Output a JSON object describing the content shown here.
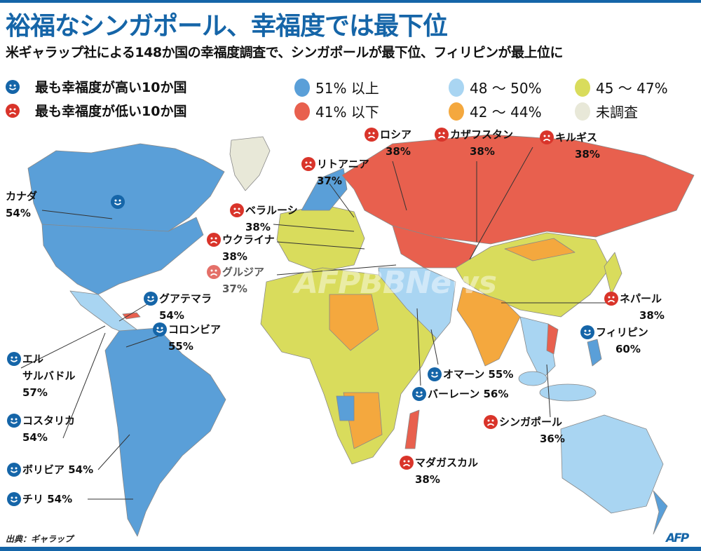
{
  "title": "裕福なシンガポール、幸福度では最下位",
  "subtitle": "米ギャラップ社による148か国の幸福度調査で、シンガポールが最下位、フィリピンが最上位に",
  "legend": {
    "happy": "最も幸福度が高い10か国",
    "unhappy": "最も幸福度が低い10か国",
    "ranges": [
      {
        "label": "51% 以上",
        "color": "#5a9fd8"
      },
      {
        "label": "48 ～ 50%",
        "color": "#a9d5f2"
      },
      {
        "label": "45 ～ 47%",
        "color": "#d9dc5c"
      },
      {
        "label": "41% 以下",
        "color": "#e8604e"
      },
      {
        "label": "42 ～ 44%",
        "color": "#f4a83e"
      },
      {
        "label": "未調査",
        "color": "#e8e8d8"
      }
    ]
  },
  "colors": {
    "happy_icon": "#1565a8",
    "unhappy_icon": "#d9342a",
    "title": "#1565a8"
  },
  "labels": [
    {
      "name": "カナダ",
      "value": "54%",
      "type": "happy"
    },
    {
      "name": "グアテマラ",
      "value": "54%",
      "type": "happy"
    },
    {
      "name": "コロンビア",
      "value": "55%",
      "type": "happy"
    },
    {
      "name": "エル",
      "name2": "サルバドル",
      "value": "57%",
      "type": "happy"
    },
    {
      "name": "コスタリカ",
      "value": "54%",
      "type": "happy"
    },
    {
      "name": "ボリビア 54%",
      "type": "happy"
    },
    {
      "name": "チリ 54%",
      "type": "happy"
    },
    {
      "name": "ロシア",
      "value": "38%",
      "type": "unhappy"
    },
    {
      "name": "カザフスタン",
      "value": "38%",
      "type": "unhappy"
    },
    {
      "name": "キルギス",
      "value": "38%",
      "type": "unhappy"
    },
    {
      "name": "リトアニア",
      "value": "37%",
      "type": "unhappy"
    },
    {
      "name": "ベラルーシ",
      "value": "38%",
      "type": "unhappy"
    },
    {
      "name": "ウクライナ",
      "value": "38%",
      "type": "unhappy"
    },
    {
      "name": "グルジア",
      "value": "37%",
      "type": "unhappy"
    },
    {
      "name": "ネパール",
      "value": "38%",
      "type": "unhappy"
    },
    {
      "name": "フィリピン",
      "value": "60%",
      "type": "happy"
    },
    {
      "name": "オマーン 55%",
      "type": "happy"
    },
    {
      "name": "バーレーン 56%",
      "type": "happy"
    },
    {
      "name": "シンガポール",
      "value": "36%",
      "type": "unhappy"
    },
    {
      "name": "マダガスカル",
      "value": "38%",
      "type": "unhappy"
    }
  ],
  "watermark": "AFPBBNews",
  "source": "出典：ギャラップ",
  "logo": "AFP"
}
